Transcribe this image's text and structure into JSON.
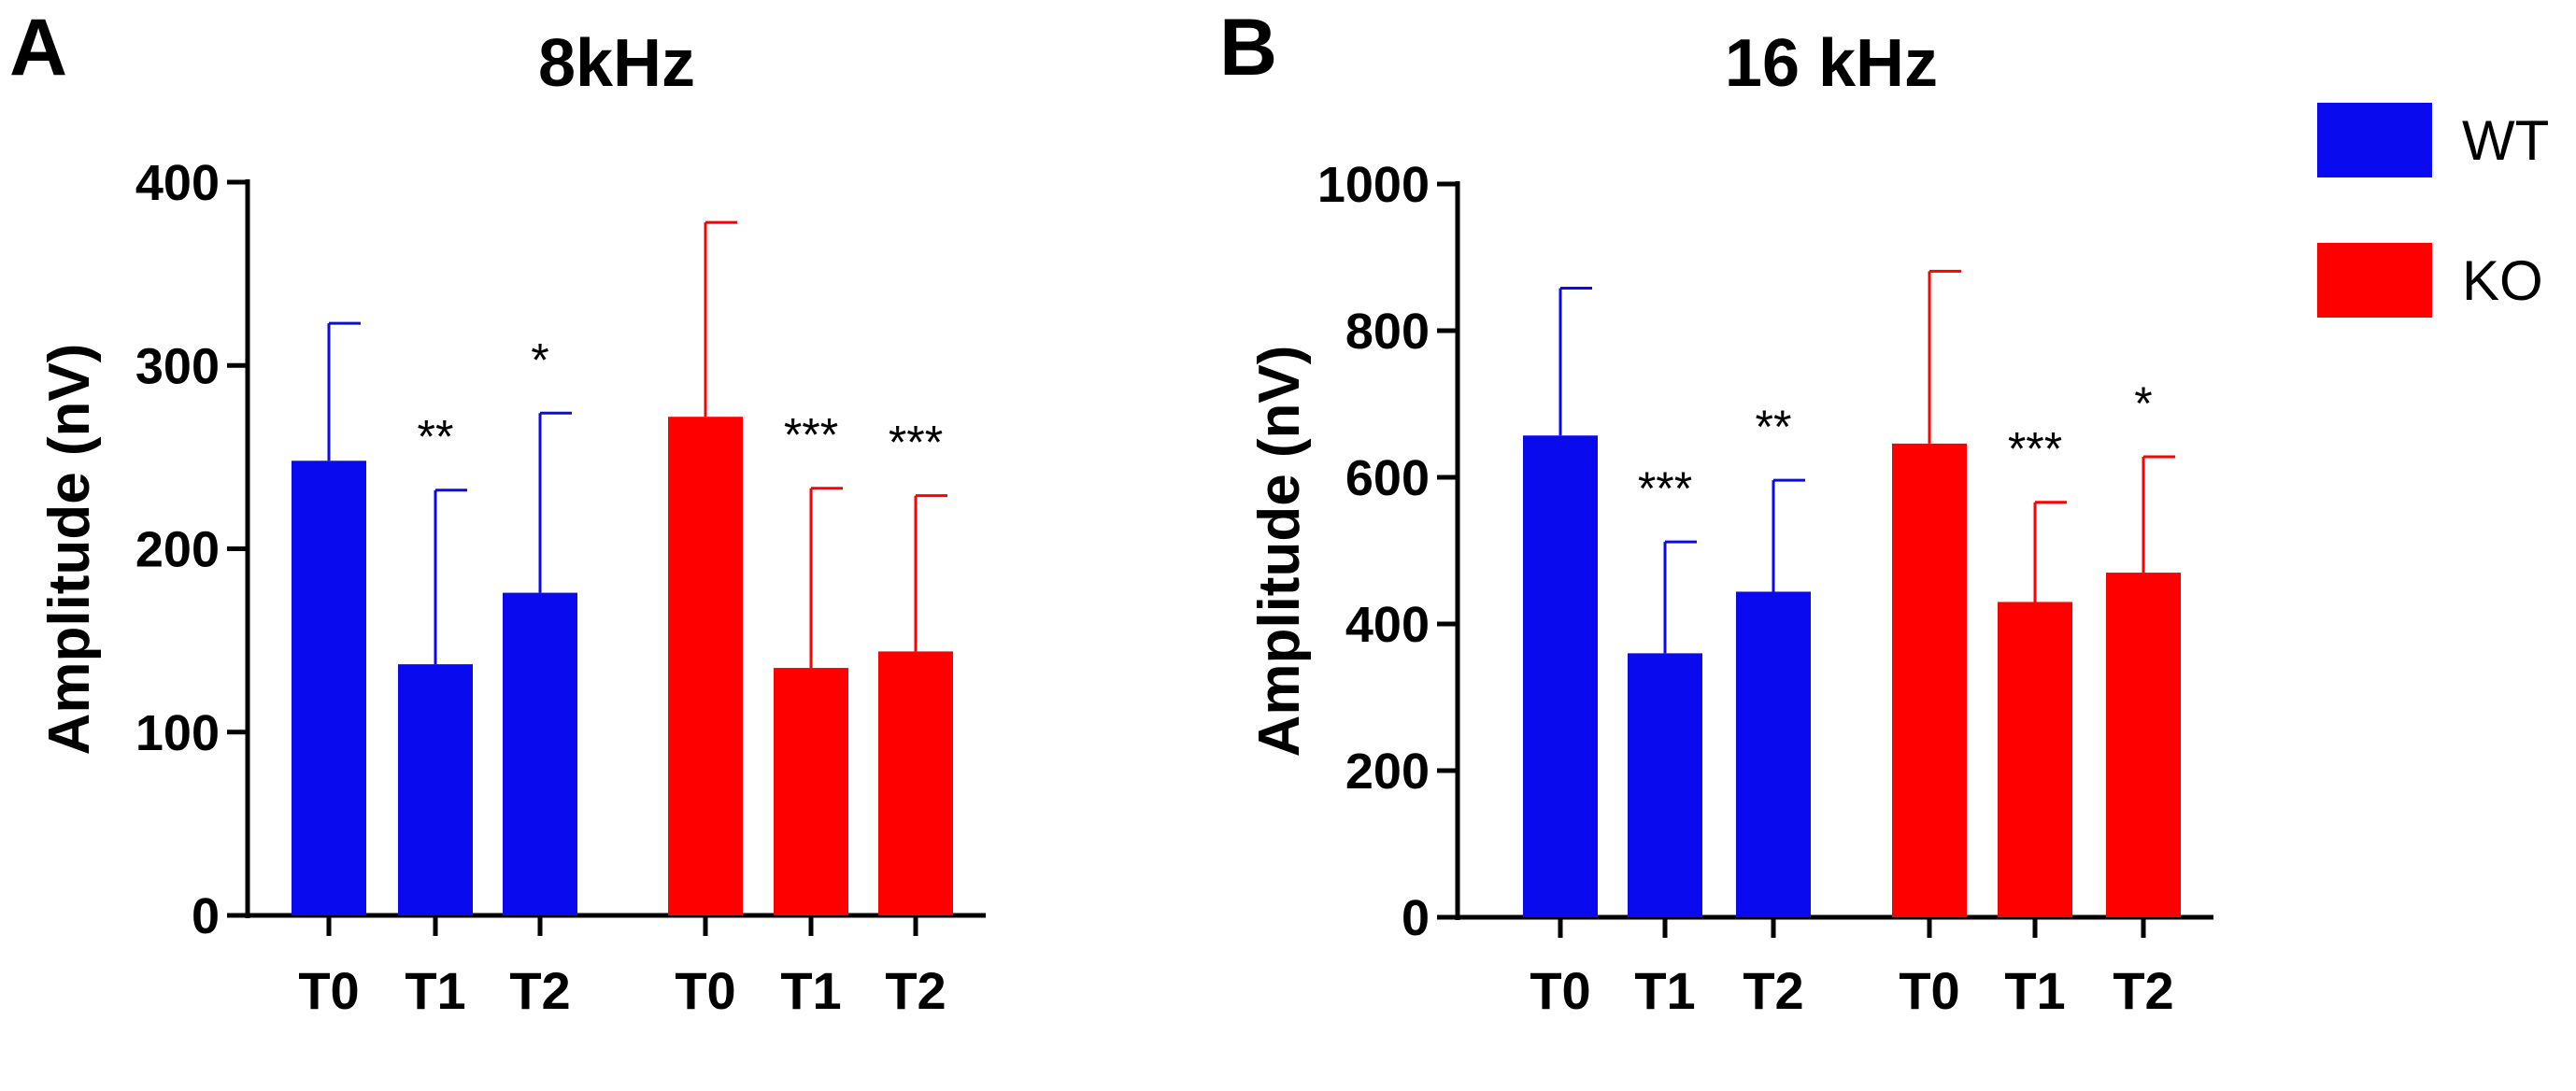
{
  "colors": {
    "WT": "#0a0aee",
    "KO": "#ff0000"
  },
  "legend": [
    {
      "name": "WT",
      "color": "#0a0aee"
    },
    {
      "name": "KO",
      "color": "#ff0000"
    }
  ],
  "chart_data": [
    {
      "type": "bar",
      "panel": "A",
      "title": "8kHz",
      "ylabel": "Amplitude (nV)",
      "ylim": [
        0,
        400
      ],
      "yticks": [
        0,
        100,
        200,
        300,
        400
      ],
      "categories": [
        "T0",
        "T1",
        "T2",
        "T0",
        "T1",
        "T2"
      ],
      "groups": [
        "WT",
        "WT",
        "WT",
        "KO",
        "KO",
        "KO"
      ],
      "values": [
        248,
        137,
        176,
        272,
        135,
        144
      ],
      "error_upper": [
        323,
        232,
        274,
        378,
        233,
        229
      ],
      "significance": [
        "",
        "**",
        "*",
        "",
        "***",
        "***"
      ]
    },
    {
      "type": "bar",
      "panel": "B",
      "title": "16 kHz",
      "ylabel": "Amplitude (nV)",
      "ylim": [
        0,
        1000
      ],
      "yticks": [
        0,
        200,
        400,
        600,
        800,
        1000
      ],
      "categories": [
        "T0",
        "T1",
        "T2",
        "T0",
        "T1",
        "T2"
      ],
      "groups": [
        "WT",
        "WT",
        "WT",
        "KO",
        "KO",
        "KO"
      ],
      "values": [
        657,
        360,
        444,
        646,
        430,
        470
      ],
      "error_upper": [
        858,
        512,
        596,
        881,
        566,
        628
      ],
      "significance": [
        "",
        "***",
        "**",
        "",
        "***",
        "*"
      ]
    }
  ]
}
